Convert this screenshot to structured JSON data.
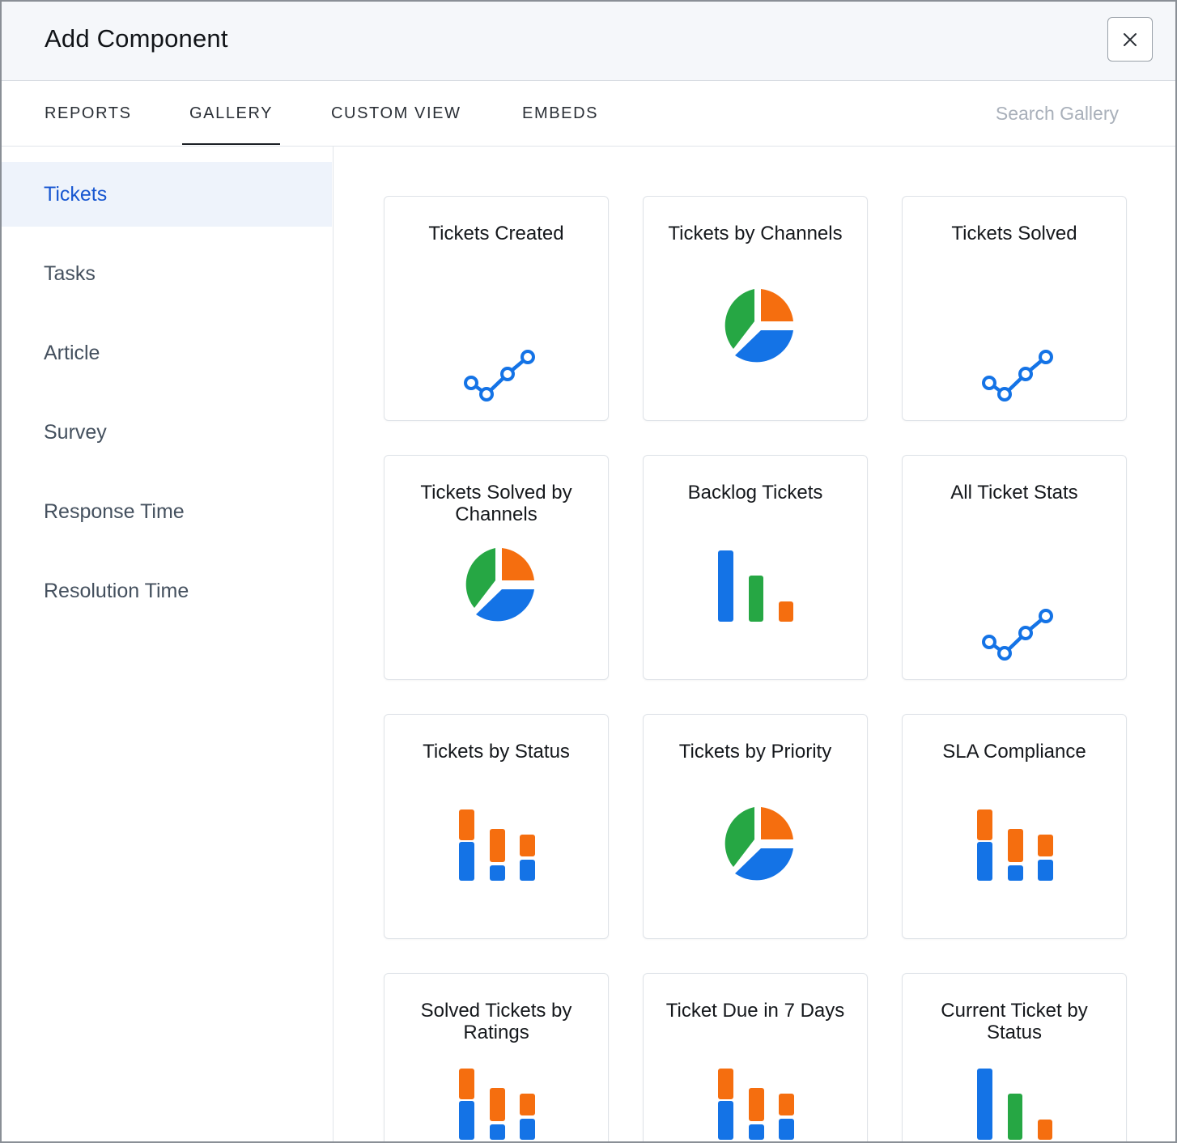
{
  "header": {
    "title": "Add Component",
    "close_symbol": "×"
  },
  "tabs": [
    {
      "label": "REPORTS",
      "active": false
    },
    {
      "label": "GALLERY",
      "active": true
    },
    {
      "label": "CUSTOM VIEW",
      "active": false
    },
    {
      "label": "EMBEDS",
      "active": false
    }
  ],
  "search": {
    "placeholder": "Search Gallery",
    "value": ""
  },
  "sidebar": {
    "items": [
      {
        "label": "Tickets",
        "active": true
      },
      {
        "label": "Tasks",
        "active": false
      },
      {
        "label": "Article",
        "active": false
      },
      {
        "label": "Survey",
        "active": false
      },
      {
        "label": "Response Time",
        "active": false
      },
      {
        "label": "Resolution Time",
        "active": false
      }
    ]
  },
  "colors": {
    "blue": "#1473e6",
    "green": "#26a744",
    "orange": "#f56e0f",
    "active_text": "#1857d1"
  },
  "gallery": {
    "cards": [
      {
        "title": "Tickets Created",
        "icon": "line-chart-icon"
      },
      {
        "title": "Tickets by Channels",
        "icon": "pie-chart-icon"
      },
      {
        "title": "Tickets Solved",
        "icon": "line-chart-icon"
      },
      {
        "title": "Tickets Solved by Channels",
        "icon": "pie-chart-icon"
      },
      {
        "title": "Backlog Tickets",
        "icon": "bar-chart-icon"
      },
      {
        "title": "All Ticket Stats",
        "icon": "line-chart-icon"
      },
      {
        "title": "Tickets by Status",
        "icon": "stacked-bar-chart-icon"
      },
      {
        "title": "Tickets by Priority",
        "icon": "pie-chart-icon"
      },
      {
        "title": "SLA Compliance",
        "icon": "stacked-bar-chart-icon"
      },
      {
        "title": "Solved Tickets by Ratings",
        "icon": "stacked-bar-chart-icon"
      },
      {
        "title": "Ticket Due in 7 Days",
        "icon": "stacked-bar-chart-icon"
      },
      {
        "title": "Current Ticket by Status",
        "icon": "bar-chart-icon"
      }
    ]
  }
}
